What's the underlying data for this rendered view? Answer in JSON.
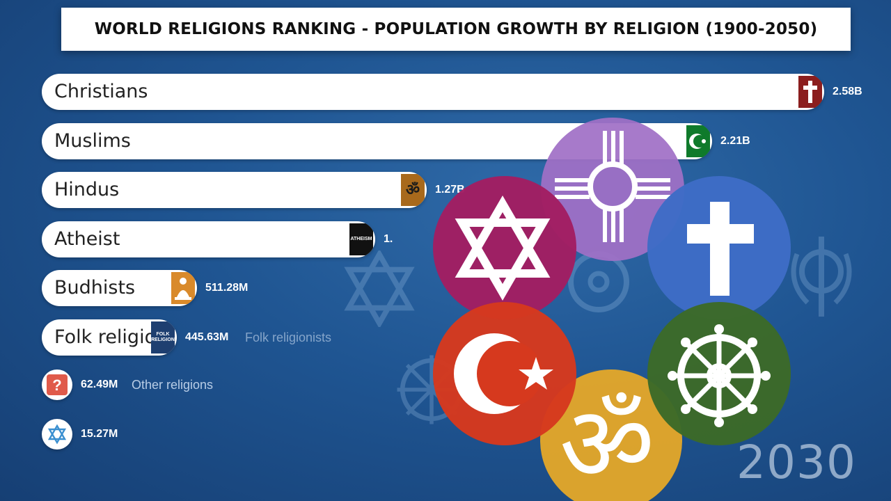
{
  "title": "WORLD RELIGIONS RANKING - POPULATION GROWTH BY RELIGION (1900-2050)",
  "year_label": "2030",
  "colors": {
    "christian": "#8b1e1e",
    "muslim": "#0f7a2b",
    "hindu": "#a8691c",
    "atheist": "#111111",
    "buddhist": "#d98a2b",
    "folk": "#1e3f70",
    "other": "#e05a4a",
    "jewish": "#3a8fd0"
  },
  "chart_data": {
    "type": "bar",
    "title": "WORLD RELIGIONS RANKING - POPULATION GROWTH BY RELIGION (1900-2050)",
    "categories": [
      "Christians",
      "Muslims",
      "Hindus",
      "Atheist",
      "Budhists",
      "Folk religionists",
      "Other religions",
      ""
    ],
    "values": [
      2580000000,
      2210000000,
      1270000000,
      1100000000,
      511280000,
      445630000,
      62490000,
      15270000
    ],
    "display_values": [
      "2.58B",
      "2.21B",
      "1.27B",
      "1.",
      "511.28M",
      "445.63M",
      "62.49M",
      "15.27M"
    ],
    "bar_labels": [
      "Christians",
      "Muslims",
      "Hindus",
      "Atheist",
      "Budhists",
      "Folk religio",
      "",
      ""
    ],
    "extra_labels": [
      "",
      "",
      "",
      "",
      "",
      "Folk religionists",
      "Other religions",
      ""
    ],
    "icons": [
      "cross-icon",
      "crescent-icon",
      "om-icon",
      "atheism-icon",
      "buddha-icon",
      "folk-icon",
      "question-icon",
      "star-of-david-icon"
    ],
    "icon_text": [
      "",
      "",
      "ॐ",
      "ATHEISM",
      "",
      "FOLK RELIGION",
      "?",
      ""
    ],
    "xlabel": "",
    "ylabel": ""
  },
  "emblems": [
    {
      "name": "zia-sun-emblem",
      "color": "#a070c6"
    },
    {
      "name": "star-of-david-emblem",
      "color": "#a21e62"
    },
    {
      "name": "cross-emblem",
      "color": "#3e6cc6"
    },
    {
      "name": "crescent-star-emblem",
      "color": "#d6391e"
    },
    {
      "name": "dharma-wheel-emblem",
      "color": "#3c6a28"
    },
    {
      "name": "om-emblem",
      "color": "#e1a62a"
    }
  ],
  "emblem_text": {
    "om": "ॐ"
  }
}
